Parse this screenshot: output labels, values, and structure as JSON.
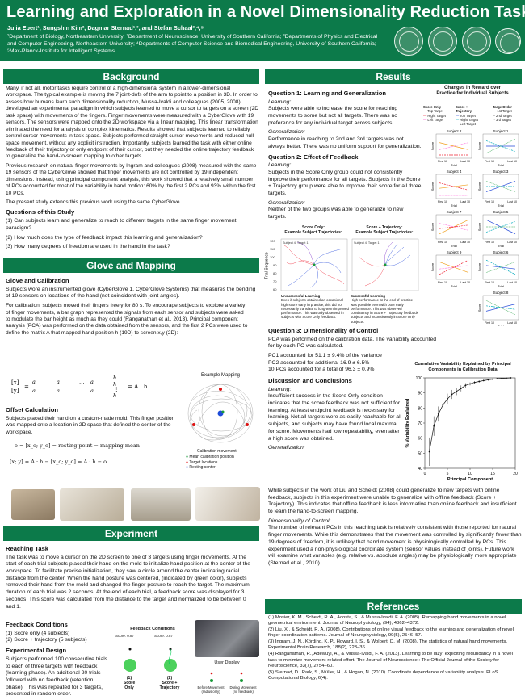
{
  "header": {
    "title": "Learning and Exploration in a Novel Dimensionality Reduction Task",
    "authors": "Julia Ebert¹, Sungshin Kim², Dagmar Sternad¹,³, and Stefan Schaal²,⁴,⁵",
    "affiliations": "¹Department of Biology, Northeastern University; ²Department of Neuroscience, University of Southern California; ³Departments of Physics and Electrical and Computer Engineering, Northeastern University; ⁴Departments of Computer Science and Biomedical Engineering, University of Southern California; ⁵Max-Planck-Institute for Intelligent Systems"
  },
  "background": {
    "heading": "Background",
    "p1": "Many, if not all, motor tasks require control of a high-dimensional system in a lower-dimensional workspace. The typical example is moving the 7 joint-dofs of the arm to point to a position in 3D. In order to assess how humans learn such dimensionality reduction, Mussa-Ivaldi and colleagues (2005, 2008) developed an experimental paradigm in which subjects learned to move a cursor to targets on a screen (2D task space) with movements of the fingers. Finger movements were measured with a CyberGlove with 19 sensors. The sensors were mapped onto the 2D workspace via a linear mapping. This linear transformation eliminated the need for analysis of complex kinematics. Results showed that subjects learned to reliably control cursor movements in task space. Subjects performed straight cursor movements and reduced null space movement, without any explicit instruction. Importantly, subjects learned the task with either online feedback of their trajectory or only endpoint of their cursor, but they needed the online trajectory feedback to generalize the hand-to-screen mapping to other targets.",
    "p2": "Previous research on natural finger movements by Ingram and colleagues (2008) measured with the same 19 sensors of the CyberGlove showed that finger movements are not controlled by 19 independent dimensions. Instead, using principal component analysis, this work showed that a relatively small number of PCs accounted for most of the variability in hand motion: 60% by the first 2 PCs and 93% within the first 10 PCs.",
    "p3": "The present study extends this previous work using the same CyberGlove.",
    "questions_heading": "Questions of this Study",
    "q1": "(1) Can subjects learn and generalize to reach to different targets in the same finger movement paradigm?",
    "q2": "(2) How much does the type of feedback impact this learning and generalization?",
    "q3": "(3) How many degrees of freedom are used in the hand in the task?"
  },
  "glove": {
    "heading": "Glove and Mapping",
    "cal_heading": "Glove and Calibration",
    "p1": "Subjects wore an instrumented glove (CyberGlove 1, CyberGlove Systems) that measures the bending of 19 sensors on locations of the hand (not coincident with joint angles).",
    "p2": "For calibration, subjects moved their fingers freely for 80 s. To encourage subjects to explore a variety of finger movements, a bar graph represented the signals from each sensor and subjects were asked to modulate the bar height as much as they could (Ranganathan et al., 2013). Principal component analysis (PCA) was performed on the data obtained from the sensors, and the first 2 PCs were used to define the matrix A that mapped hand position h (19D) to screen x,y (2D):",
    "eq1": "[x; y] = [a_x,1 a_x,1 ... a_x,19; a_y,1 a_y,2 ... a_y,19] · [h_1; h_2; ...; h_19] = A · h",
    "offset_heading": "Offset Calculation",
    "p3": "Subjects placed their hand on a custom-made mold. This finger position was mapped onto a location in 2D space that defined the center of the workspace.",
    "eq2": "o = [x_o; y_o] = resting point − mapping mean",
    "eq3": "[x; y] = A · h − [x_o; y_o] = A · h − o",
    "example_label": "Example Mapping",
    "legend": [
      "Calibration movement",
      "Mean calibration position",
      "Target locations",
      "Resting center"
    ]
  },
  "experiment": {
    "heading": "Experiment",
    "reaching_heading": "Reaching Task",
    "p1": "The task was to move a cursor on the 2D screen to one of 3 targets using finger movements. At the start of each trial subjects placed their hand on the mold to initialize hand position at the center of the workspace. To facilitate precise initialization, they saw a circle around the center indicating radial distance from the center. When the hand posture was centered, (indicated by green color), subjects removed their hand from the mold and changed the finger posture to reach the target. The maximum duration of each trial was 2 seconds. At the end of each trial, a feedback score was displayed for 3 seconds. This score was calculated from the distance to the target and normalized to be between 0 and 1.",
    "fb_heading": "Feedback Conditions",
    "fb1": "(1) Score only (4 subjects)",
    "fb2": "(2) Score + trajectory (5 subjects)",
    "design_heading": "Experimental Design",
    "p2": "Subjects performed 100 consecutive trials to each of three targets with feedback (learning phase). An additional 20 trials followed with no feedback (retention phase). This was repeated for 3 targets, presented in random order.",
    "fb_fig_title": "Feedback Conditions",
    "score_a": "Score: 0.87",
    "score_b": "Score: 0.87",
    "fb_cap1": "(1)\nScore\nOnly",
    "fb_cap2": "(2)\nScore +\nTrajectory",
    "user_display": "User Display",
    "disp_cap1": "Before Movement\n(radius only)",
    "disp_cap2": "During Movement\n(no feedback)"
  },
  "results": {
    "heading": "Results",
    "q1_heading": "Question 1: Learning and Generalization",
    "learning_label": "Learning:",
    "q1_learning": "Subjects were able to increase the score for reaching movements to some but not all targets. There was no preference for any individual target across subjects.",
    "generalization_label": "Generalization:",
    "q1_gen": "Performance in reaching to 2nd and 3rd targets was not always better. There was no uniform support for generalization.",
    "q2_heading": "Question 2: Effect of Feedback",
    "q2_learning": "Subjects in the Score Only group could not consistently improve their performance for all targets. Subjects in the Score + Trajectory group were able to improve their score for all three targets.",
    "q2_gen": "Neither of the two groups was able to generalize to new targets.",
    "traj_title_a": "Score Only:\nExample Subject Trajectories:",
    "traj_title_b": "Score + Trajectory:\nExample Subject Trajectories:",
    "traj_sub_a": "Subject 4, Target 1",
    "traj_sub_b": "Subject 4, Target 1",
    "unsuccessful_title": "Unsuccessful Learning",
    "unsuccessful_text": "Even if subjects obtained an occasional high score early in practice, this did not necessarily translate to long-term improved performance. This was only observed in subjects with Score Only feedback.",
    "successful_title": "Successful Learning",
    "successful_text": "High performance at the end of practice was possible even with poor early performance. This was observed consistently in Score + Trajectory feedback subjects and inconsistently in Score Only subjects.",
    "trial_seq": "Trial Sequence",
    "q3_heading": "Question 3: Dimensionality of Control",
    "q3_p1": "PCA was performed on the calibration data. The variability accounted for by each PC was calculated.",
    "q3_pc1": "PC1 accounted for 51.1 ± 9.4% of the variance",
    "q3_pc2": "PC2 accounted for additional 16.9 ± 6.5%",
    "q3_pc10": "10 PCs accounted for a total of 96.3 ± 0.9%",
    "disc_heading": "Discussion and Conclusions",
    "disc_learning": "Insufficient success in the Score Only condition indicates that the score feedback was not sufficient for learning. At least endpoint feedback is necessary for learning. Not all targets were as easily reachable for all subjects, and subjects may have found local maxima for score. Movements had low repeatability, even after a high score was obtained.",
    "disc_gen": "While subjects in the work of Liu and Scheidt (2008) could generalize to new targets with online feedback, subjects in this experiment were unable to generalize with offline feedback (Score + Trajectory). This indicates that offline feedback is less informative than online feedback and insufficient to learn the hand-to-screen mapping.",
    "dim_label": "Dimensionality of Control:",
    "disc_dim": "The number of relevant PCs in this reaching task is relatively consistent with those reported for natural finger movements. While this demonstrates that the movement was controlled by significantly fewer than 19 degrees of freedom, it is unlikely that hand movement is physiologically controlled by PCs. This experiment used a non-physiological coordinate system (sensor values instead of joints). Future work will examine what variables (e.g. relative vs. absolute angles) may be physiologically more appropriate (Sternad et al., 2010).",
    "reward_title": "Changes in Reward over\nPractice for Individual Subjects",
    "legend_h1": "Score Only",
    "legend_h2": "Score +\nTrajectory",
    "legend_h3": "TargetOrder",
    "legend_col1": [
      "Top Target",
      "Right Target",
      "Left Target"
    ],
    "legend_col2": [
      "Top Target",
      "Right Target",
      "Left Target"
    ],
    "legend_col3": [
      "1st Target",
      "2nd Target",
      "3rd Target"
    ],
    "subjects_left": [
      "Subject 2",
      "Subject 4",
      "Subject 7",
      "Subject 9"
    ],
    "subjects_right": [
      "Subject 1",
      "Subject 3",
      "Subject 5",
      "Subject 6",
      "Subject 8"
    ],
    "score_axis": "Score",
    "trial_axis": "Trial",
    "tick_first": "First 10",
    "tick_last": "Last 10"
  },
  "chart_data": {
    "type": "line",
    "title": "Cumulative Variability Explained by Principal Components in Calibration Data",
    "xlabel": "Principal Component",
    "ylabel": "% Variability Explained",
    "xlim": [
      0,
      20
    ],
    "ylim": [
      40,
      100
    ],
    "xticks": [
      0,
      5,
      10,
      15,
      20
    ],
    "yticks": [
      40,
      50,
      60,
      70,
      80,
      90,
      100
    ],
    "x": [
      1,
      2,
      3,
      4,
      5,
      6,
      7,
      8,
      9,
      10,
      11,
      12,
      13,
      14,
      15,
      16,
      17,
      18,
      19
    ],
    "y": [
      51,
      68,
      76,
      82,
      86,
      89,
      91,
      93,
      95,
      96,
      97,
      97.6,
      98.2,
      98.7,
      99.1,
      99.4,
      99.6,
      99.8,
      100
    ],
    "err": [
      9.4,
      6.5,
      5,
      4,
      3.5,
      3,
      2.5,
      2,
      1.5,
      1,
      0.8,
      0.7,
      0.6,
      0.5,
      0.4,
      0.3,
      0.2,
      0.1,
      0
    ]
  },
  "references": {
    "heading": "References",
    "r1": "(1) Mosier, K. M., Scheidt, R. A., Acosta, S., & Mussa-Ivaldi, F. A. (2005). Remapping hand movements in a novel geometrical environment. Journal of Neurophysiology, (94), 4362–4372.",
    "r2": "(2) Liu, X., & Scheidt, R. A. (2008). Contributions of online visual feedback to the learning and generalization of novel finger coordination patterns. Journal of Neurophysiology, 99(5), 2546–57.",
    "r3": "(3) Ingram, J. N., Körding, K. P., Howard, I. S., & Wolpert, D. M. (2008). The statistics of natural hand movements. Experimental Brain Research, 188(2), 223–36.",
    "r4": "(4) Ranganathan, R., Adewuyi, A., & Mussa-Ivaldi, F. A. (2013). Learning to be lazy: exploiting redundancy in a novel task to minimize movement-related effort. The Journal of Neuroscience : The Official Journal of the Society for Neuroscience, 33(7), 2754–60.",
    "r5": "(5) Sternad, D., Park, S., Müller, H., & Hogan, N. (2010). Coordinate dependence of variability analysis. PLoS Computational Biology, 6(4)."
  },
  "colors": {
    "accent": "#0c7a4a",
    "pale": "#e7f2ec"
  }
}
